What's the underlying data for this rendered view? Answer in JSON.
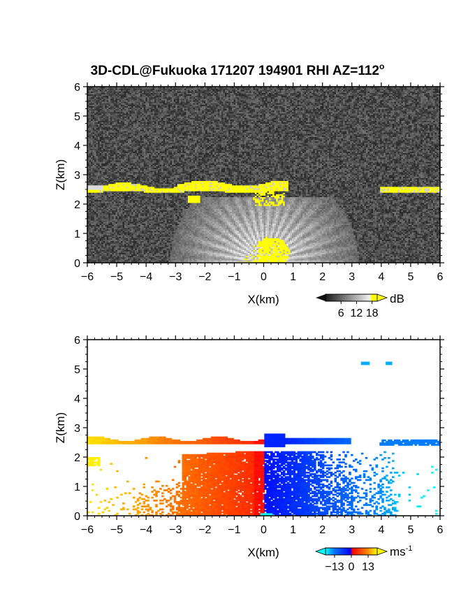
{
  "title": "3D-CDL@Fukuoka 171207 194901 RHI AZ=112",
  "title_degree_sign": "o",
  "chart_data": [
    {
      "type": "heatmap",
      "name": "backscatter",
      "xlabel": "X(km)",
      "ylabel": "Z(km)",
      "xlim": [
        -6,
        6
      ],
      "ylim": [
        0,
        6
      ],
      "x_ticks": [
        "-6",
        "-5",
        "-4",
        "-3",
        "-2",
        "-1",
        "0",
        "1",
        "2",
        "3",
        "4",
        "5",
        "6"
      ],
      "y_ticks": [
        "0",
        "1",
        "2",
        "3",
        "4",
        "5",
        "6"
      ],
      "colorbar": {
        "unit": "dB",
        "tick_labels": [
          "6",
          "12",
          "18"
        ],
        "tick_values": [
          6,
          12,
          18
        ],
        "range": [
          0,
          20
        ],
        "palette": "grayscale-to-yellow",
        "high_color": "#ffff00"
      },
      "features": [
        {
          "label": "cloud base layer",
          "x_range": [
            -6,
            0.8
          ],
          "z_range": [
            2.35,
            2.75
          ],
          "value_db": 20
        },
        {
          "label": "cloud base layer",
          "x_range": [
            3.9,
            6
          ],
          "z_range": [
            2.35,
            2.6
          ],
          "value_db": 20
        },
        {
          "label": "near-ground echo",
          "x_range": [
            -0.2,
            0.9
          ],
          "z_range": [
            0,
            0.9
          ],
          "value_db": 18
        },
        {
          "label": "fan-shaped clear-air echo",
          "x_range": [
            -3,
            3
          ],
          "z_range": [
            0,
            2.2
          ],
          "value_db": 12
        },
        {
          "label": "background noise",
          "x_range": [
            -6,
            6
          ],
          "z_range": [
            0,
            6
          ],
          "value_db": 4
        }
      ]
    },
    {
      "type": "heatmap",
      "name": "doppler velocity",
      "xlabel": "X(km)",
      "ylabel": "Z(km)",
      "xlim": [
        -6,
        6
      ],
      "ylim": [
        0,
        6
      ],
      "x_ticks": [
        "-6",
        "-5",
        "-4",
        "-3",
        "-2",
        "-1",
        "0",
        "1",
        "2",
        "3",
        "4",
        "5",
        "6"
      ],
      "y_ticks": [
        "0",
        "1",
        "2",
        "3",
        "4",
        "5",
        "6"
      ],
      "colorbar": {
        "unit": "ms",
        "unit_exponent": "-1",
        "tick_labels": [
          "-13",
          "0",
          "13"
        ],
        "tick_values": [
          -13,
          0,
          13
        ],
        "range": [
          -20,
          20
        ],
        "palette": "cyan-blue-red-yellow"
      },
      "features": [
        {
          "label": "approaching flow (warm)",
          "x_range": [
            -6,
            0
          ],
          "z_range": [
            0,
            2.8
          ],
          "velocity_ms": 13
        },
        {
          "label": "receding flow (cold)",
          "x_range": [
            0,
            4.5
          ],
          "z_range": [
            0,
            2.75
          ],
          "velocity_ms": -8
        },
        {
          "label": "upper layer",
          "x_range": [
            3.9,
            6
          ],
          "z_range": [
            2.35,
            2.55
          ],
          "velocity_ms": -14
        },
        {
          "label": "isolated echoes",
          "x_range": [
            3.3,
            4.5
          ],
          "z_range": [
            5.1,
            5.25
          ],
          "velocity_ms": -16
        }
      ]
    }
  ]
}
